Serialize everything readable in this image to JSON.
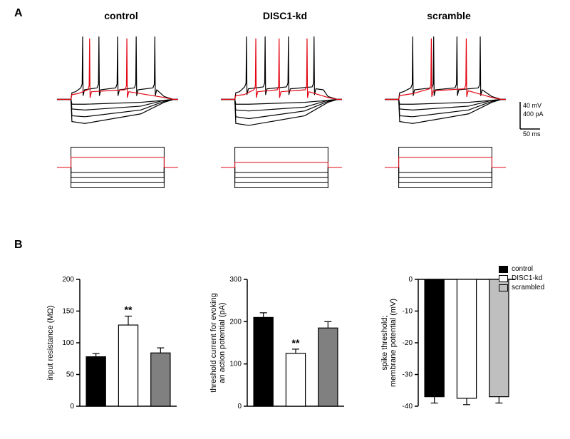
{
  "figure": {
    "panelA": {
      "label": "A",
      "label_fontsize": 16,
      "titles": [
        "control",
        "DISC1-kd",
        "scramble"
      ],
      "title_fontsize": 14,
      "trace_panels": [
        {
          "upper": {
            "black_traces": [
              [
                [
                  0,
                  -45
                ],
                [
                  30,
                  -45
                ],
                [
                  32,
                  -68
                ],
                [
                  60,
                  -70
                ],
                [
                  180,
                  -60
                ],
                [
                  230,
                  -48
                ],
                [
                  250,
                  -45
                ],
                [
                  260,
                  -45
                ]
              ],
              [
                [
                  0,
                  -45
                ],
                [
                  30,
                  -45
                ],
                [
                  32,
                  -62
                ],
                [
                  60,
                  -63
                ],
                [
                  180,
                  -56
                ],
                [
                  230,
                  -47
                ],
                [
                  250,
                  -45
                ],
                [
                  260,
                  -45
                ]
              ],
              [
                [
                  0,
                  -45
                ],
                [
                  30,
                  -45
                ],
                [
                  32,
                  -55
                ],
                [
                  60,
                  -56
                ],
                [
                  180,
                  -52
                ],
                [
                  230,
                  -46
                ],
                [
                  250,
                  -45
                ],
                [
                  260,
                  -45
                ]
              ],
              [
                [
                  0,
                  -45
                ],
                [
                  30,
                  -45
                ],
                [
                  32,
                  -50
                ],
                [
                  60,
                  -50
                ],
                [
                  180,
                  -48
                ],
                [
                  230,
                  -46
                ],
                [
                  250,
                  -45
                ],
                [
                  260,
                  -45
                ]
              ]
            ],
            "black_spike_trace": {
              "base": [
                [
                  0,
                  -45
                ],
                [
                  30,
                  -45
                ],
                [
                  32,
                  -38
                ],
                [
                  40,
                  -37
                ]
              ],
              "spikes_x": [
                55,
                90,
                130,
                170,
                210
              ],
              "spike_peak": 20,
              "spike_base": -35,
              "after": [
                [
                  230,
                  -42
                ],
                [
                  250,
                  -45
                ],
                [
                  260,
                  -45
                ]
              ]
            },
            "red_spike_trace": {
              "base": [
                [
                  0,
                  -45
                ],
                [
                  30,
                  -45
                ],
                [
                  32,
                  -40
                ],
                [
                  45,
                  -39
                ]
              ],
              "spikes_x": [
                70,
                150
              ],
              "spike_peak": 18,
              "spike_base": -37,
              "after": [
                [
                  230,
                  -43
                ],
                [
                  250,
                  -45
                ],
                [
                  260,
                  -45
                ]
              ]
            }
          },
          "lower": {
            "steps_black": [
              -400,
              -300,
              -200,
              -100,
              400
            ],
            "step_red": 200
          }
        },
        {
          "upper": {
            "black_traces": [
              [
                [
                  0,
                  -45
                ],
                [
                  30,
                  -45
                ],
                [
                  32,
                  -70
                ],
                [
                  60,
                  -72
                ],
                [
                  180,
                  -62
                ],
                [
                  230,
                  -48
                ],
                [
                  250,
                  -45
                ],
                [
                  260,
                  -45
                ]
              ],
              [
                [
                  0,
                  -45
                ],
                [
                  30,
                  -45
                ],
                [
                  32,
                  -63
                ],
                [
                  60,
                  -65
                ],
                [
                  180,
                  -57
                ],
                [
                  230,
                  -47
                ],
                [
                  250,
                  -45
                ],
                [
                  260,
                  -45
                ]
              ],
              [
                [
                  0,
                  -45
                ],
                [
                  30,
                  -45
                ],
                [
                  32,
                  -56
                ],
                [
                  60,
                  -57
                ],
                [
                  180,
                  -53
                ],
                [
                  230,
                  -46
                ],
                [
                  250,
                  -45
                ],
                [
                  260,
                  -45
                ]
              ],
              [
                [
                  0,
                  -45
                ],
                [
                  30,
                  -45
                ],
                [
                  32,
                  -50
                ],
                [
                  60,
                  -50
                ],
                [
                  180,
                  -48
                ],
                [
                  230,
                  -46
                ],
                [
                  250,
                  -45
                ],
                [
                  260,
                  -45
                ]
              ]
            ],
            "black_spike_trace": {
              "base": [
                [
                  0,
                  -45
                ],
                [
                  30,
                  -45
                ],
                [
                  32,
                  -38
                ],
                [
                  40,
                  -37
                ]
              ],
              "spikes_x": [
                55,
                95,
                145,
                200
              ],
              "spike_peak": 20,
              "spike_base": -34,
              "after": [
                [
                  220,
                  -35
                ],
                [
                  230,
                  -42
                ],
                [
                  250,
                  -45
                ],
                [
                  260,
                  -45
                ]
              ]
            },
            "red_spike_trace": {
              "base": [
                [
                  0,
                  -45
                ],
                [
                  30,
                  -45
                ],
                [
                  32,
                  -41
                ],
                [
                  50,
                  -40
                ]
              ],
              "spikes_x": [
                75,
                125,
                185
              ],
              "spike_peak": 18,
              "spike_base": -37,
              "after": [
                [
                  230,
                  -43
                ],
                [
                  250,
                  -45
                ],
                [
                  260,
                  -45
                ]
              ]
            }
          },
          "lower": {
            "steps_black": [
              -400,
              -300,
              -200,
              -100,
              400
            ],
            "step_red": 100
          }
        },
        {
          "upper": {
            "black_traces": [
              [
                [
                  0,
                  -45
                ],
                [
                  30,
                  -45
                ],
                [
                  32,
                  -68
                ],
                [
                  60,
                  -70
                ],
                [
                  180,
                  -60
                ],
                [
                  230,
                  -48
                ],
                [
                  250,
                  -45
                ],
                [
                  260,
                  -45
                ]
              ],
              [
                [
                  0,
                  -45
                ],
                [
                  30,
                  -45
                ],
                [
                  32,
                  -62
                ],
                [
                  60,
                  -63
                ],
                [
                  180,
                  -56
                ],
                [
                  230,
                  -47
                ],
                [
                  250,
                  -45
                ],
                [
                  260,
                  -45
                ]
              ],
              [
                [
                  0,
                  -45
                ],
                [
                  30,
                  -45
                ],
                [
                  32,
                  -55
                ],
                [
                  60,
                  -56
                ],
                [
                  180,
                  -52
                ],
                [
                  230,
                  -46
                ],
                [
                  250,
                  -45
                ],
                [
                  260,
                  -45
                ]
              ],
              [
                [
                  0,
                  -45
                ],
                [
                  30,
                  -45
                ],
                [
                  32,
                  -50
                ],
                [
                  60,
                  -50
                ],
                [
                  180,
                  -48
                ],
                [
                  230,
                  -46
                ],
                [
                  250,
                  -45
                ],
                [
                  260,
                  -45
                ]
              ]
            ],
            "black_spike_trace": {
              "base": [
                [
                  0,
                  -45
                ],
                [
                  30,
                  -45
                ],
                [
                  32,
                  -38
                ],
                [
                  40,
                  -37
                ]
              ],
              "spikes_x": [
                60,
                105,
                155,
                205
              ],
              "spike_peak": 20,
              "spike_base": -35,
              "after": [
                [
                  230,
                  -42
                ],
                [
                  250,
                  -45
                ],
                [
                  260,
                  -45
                ]
              ]
            },
            "red_spike_trace": {
              "base": [
                [
                  0,
                  -45
                ],
                [
                  30,
                  -45
                ],
                [
                  32,
                  -41
                ],
                [
                  60,
                  -39
                ]
              ],
              "spikes_x": [
                100,
                175
              ],
              "spike_peak": 18,
              "spike_base": -36,
              "after": [
                [
                  230,
                  -43
                ],
                [
                  250,
                  -45
                ],
                [
                  260,
                  -45
                ]
              ]
            }
          },
          "lower": {
            "steps_black": [
              -400,
              -300,
              -200,
              -100,
              400
            ],
            "step_red": 200
          }
        }
      ],
      "trace_colors": {
        "black": "#000000",
        "red": "#e30613"
      },
      "stroke_width": 1.2,
      "scalebar": {
        "mv": "40 mV",
        "pa": "400 pA",
        "ms": "50 ms",
        "fontsize": 9
      }
    },
    "panelB": {
      "label": "B",
      "label_fontsize": 11,
      "charts": [
        {
          "type": "bar",
          "ylabel": "input resistance (MΩ)",
          "ylim": [
            0,
            200
          ],
          "ytick_step": 50,
          "bars": [
            {
              "name": "control",
              "value": 78,
              "err": 5,
              "fill": "#000000"
            },
            {
              "name": "DISC1-kd",
              "value": 128,
              "err": 14,
              "fill": "#ffffff",
              "sig": "**"
            },
            {
              "name": "scrambled",
              "value": 84,
              "err": 8,
              "fill": "#808080"
            }
          ]
        },
        {
          "type": "bar",
          "ylabel": "threshold current for evoking\nan action potential (pA)",
          "ylim": [
            0,
            300
          ],
          "ytick_step": 100,
          "bars": [
            {
              "name": "control",
              "value": 210,
              "err": 11,
              "fill": "#000000"
            },
            {
              "name": "DISC1-kd",
              "value": 125,
              "err": 10,
              "fill": "#ffffff",
              "sig": "**"
            },
            {
              "name": "scrambled",
              "value": 185,
              "err": 15,
              "fill": "#808080"
            }
          ]
        },
        {
          "type": "bar",
          "ylabel": "spike threshold;\nmembrane potential (mV)",
          "ylim": [
            -40,
            0
          ],
          "ytick_step": 10,
          "inverted": true,
          "bars": [
            {
              "name": "control",
              "value": -37,
              "err": 2,
              "fill": "#000000"
            },
            {
              "name": "DISC1-kd",
              "value": -37.5,
              "err": 2,
              "fill": "#ffffff"
            },
            {
              "name": "scrambled",
              "value": -37,
              "err": 2,
              "fill": "#bfbfbf"
            }
          ]
        }
      ],
      "axis_color": "#000000",
      "axis_width": 1.5,
      "tick_fontsize": 10,
      "bar_border": "#000000",
      "err_color": "#000000",
      "legend": {
        "items": [
          {
            "label": "control",
            "fill": "#000000"
          },
          {
            "label": "DISC1-kd",
            "fill": "#ffffff"
          },
          {
            "label": "scrambled",
            "fill": "#bfbfbf"
          }
        ]
      }
    },
    "background_color": "#ffffff"
  }
}
